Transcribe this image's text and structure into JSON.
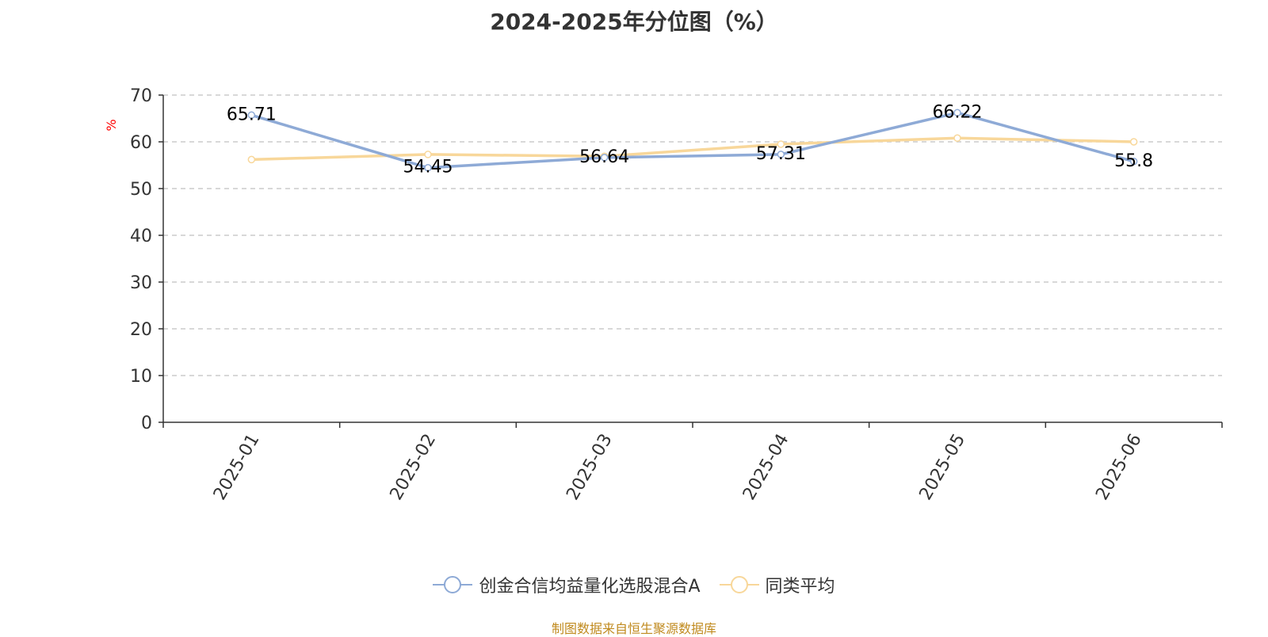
{
  "title": "2024-2025年分位图（%）",
  "source_note": "制图数据来自恒生聚源数据库",
  "colors": {
    "series_a": "#8eaad6",
    "series_b": "#f8d79a",
    "axis": "#333333",
    "grid": "#cccccc",
    "unit": "#ff0000"
  },
  "chart_data": {
    "type": "line",
    "title": "2024-2025年分位图（%）",
    "ylabel": "%",
    "ylim": [
      0,
      70
    ],
    "yticks": [
      0,
      10,
      20,
      30,
      40,
      50,
      60,
      70
    ],
    "grid": "horizontal dashed",
    "legend_position": "bottom-center",
    "categories": [
      "2025-01",
      "2025-02",
      "2025-03",
      "2025-04",
      "2025-05",
      "2025-06"
    ],
    "series": [
      {
        "name": "创金合信均益量化选股混合A",
        "values": [
          65.71,
          54.45,
          56.64,
          57.31,
          66.22,
          55.8
        ],
        "labels": [
          "65.71",
          "54.45",
          "56.64",
          "57.31",
          "66.22",
          "55.8"
        ],
        "color": "#8eaad6"
      },
      {
        "name": "同类平均",
        "values": [
          56.2,
          57.3,
          56.9,
          59.5,
          60.8,
          60.0
        ],
        "color": "#f8d79a"
      }
    ]
  }
}
